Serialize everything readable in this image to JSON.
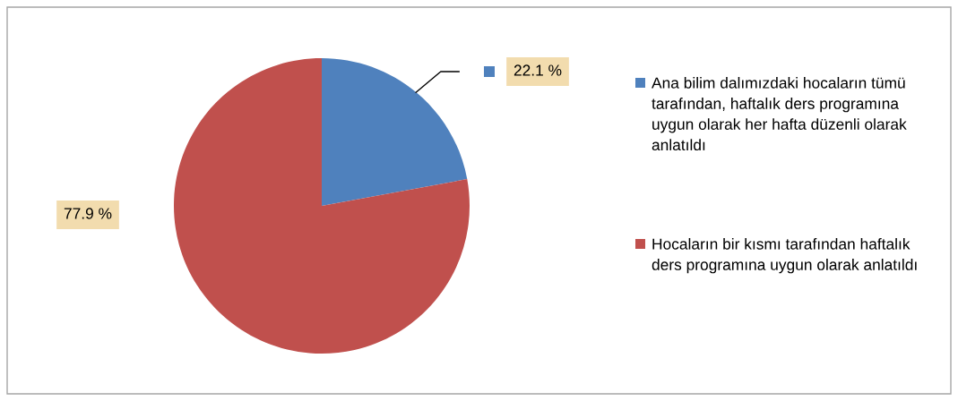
{
  "chart_data": {
    "type": "pie",
    "categories": [
      "Ana bilim dalımızdaki hocaların tümü tarafından, haftalık ders programına uygun olarak her hafta düzenli olarak anlatıldı",
      "Hocaların bir kısmı tarafından haftalık ders programına uygun olarak anlatıldı"
    ],
    "values": [
      22.1,
      77.9
    ],
    "colors": [
      "#4f81bd",
      "#c0504d"
    ],
    "value_labels": [
      "22.1 %",
      "77.9 %"
    ],
    "legend": "right"
  }
}
